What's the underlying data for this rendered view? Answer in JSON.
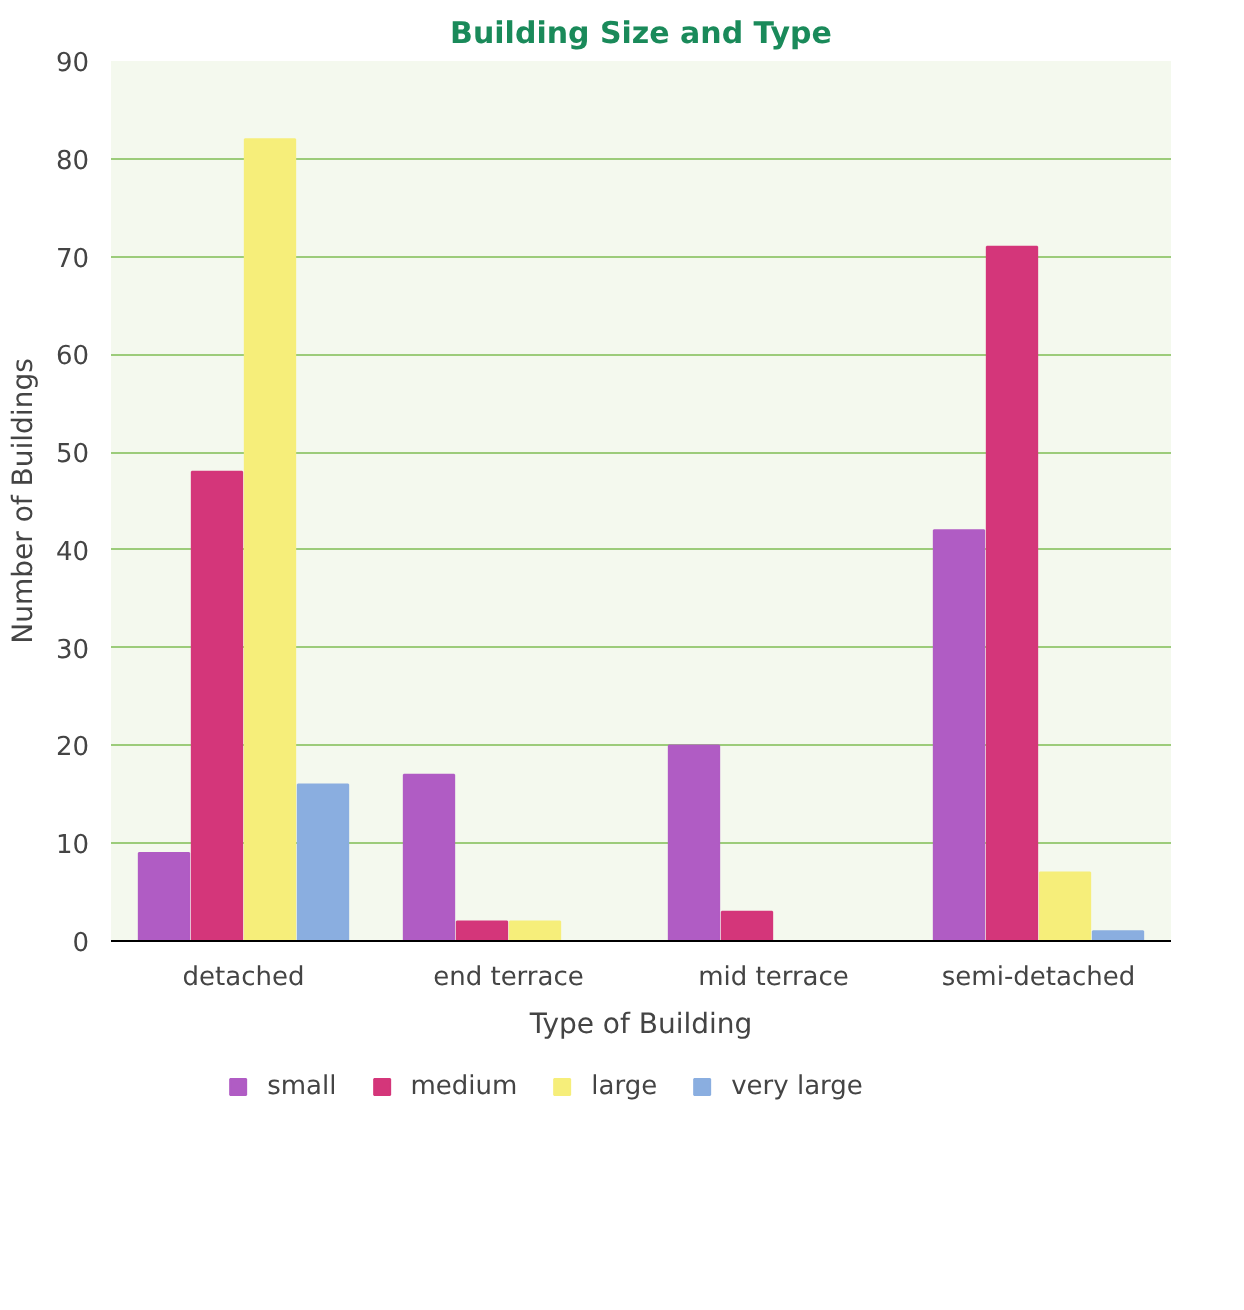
{
  "chart_data": {
    "type": "bar",
    "title": "Building Size and Type",
    "xlabel": "Type of Building",
    "ylabel": "Number of Buildings",
    "categories": [
      "detached",
      "end terrace",
      "mid terrace",
      "semi-detached"
    ],
    "series": [
      {
        "name": "small",
        "color": "#b05cc4",
        "values": [
          9,
          17,
          20,
          42
        ]
      },
      {
        "name": "medium",
        "color": "#d4367a",
        "values": [
          48,
          2,
          3,
          71
        ]
      },
      {
        "name": "large",
        "color": "#f6ee7a",
        "values": [
          82,
          2,
          0,
          7
        ]
      },
      {
        "name": "very large",
        "color": "#8aaee0",
        "values": [
          16,
          0,
          0,
          1
        ]
      }
    ],
    "ylim": [
      0,
      90
    ],
    "yticks": [
      0,
      10,
      20,
      30,
      40,
      50,
      60,
      70,
      80,
      90
    ],
    "grid": "y",
    "legend": "bottom"
  }
}
